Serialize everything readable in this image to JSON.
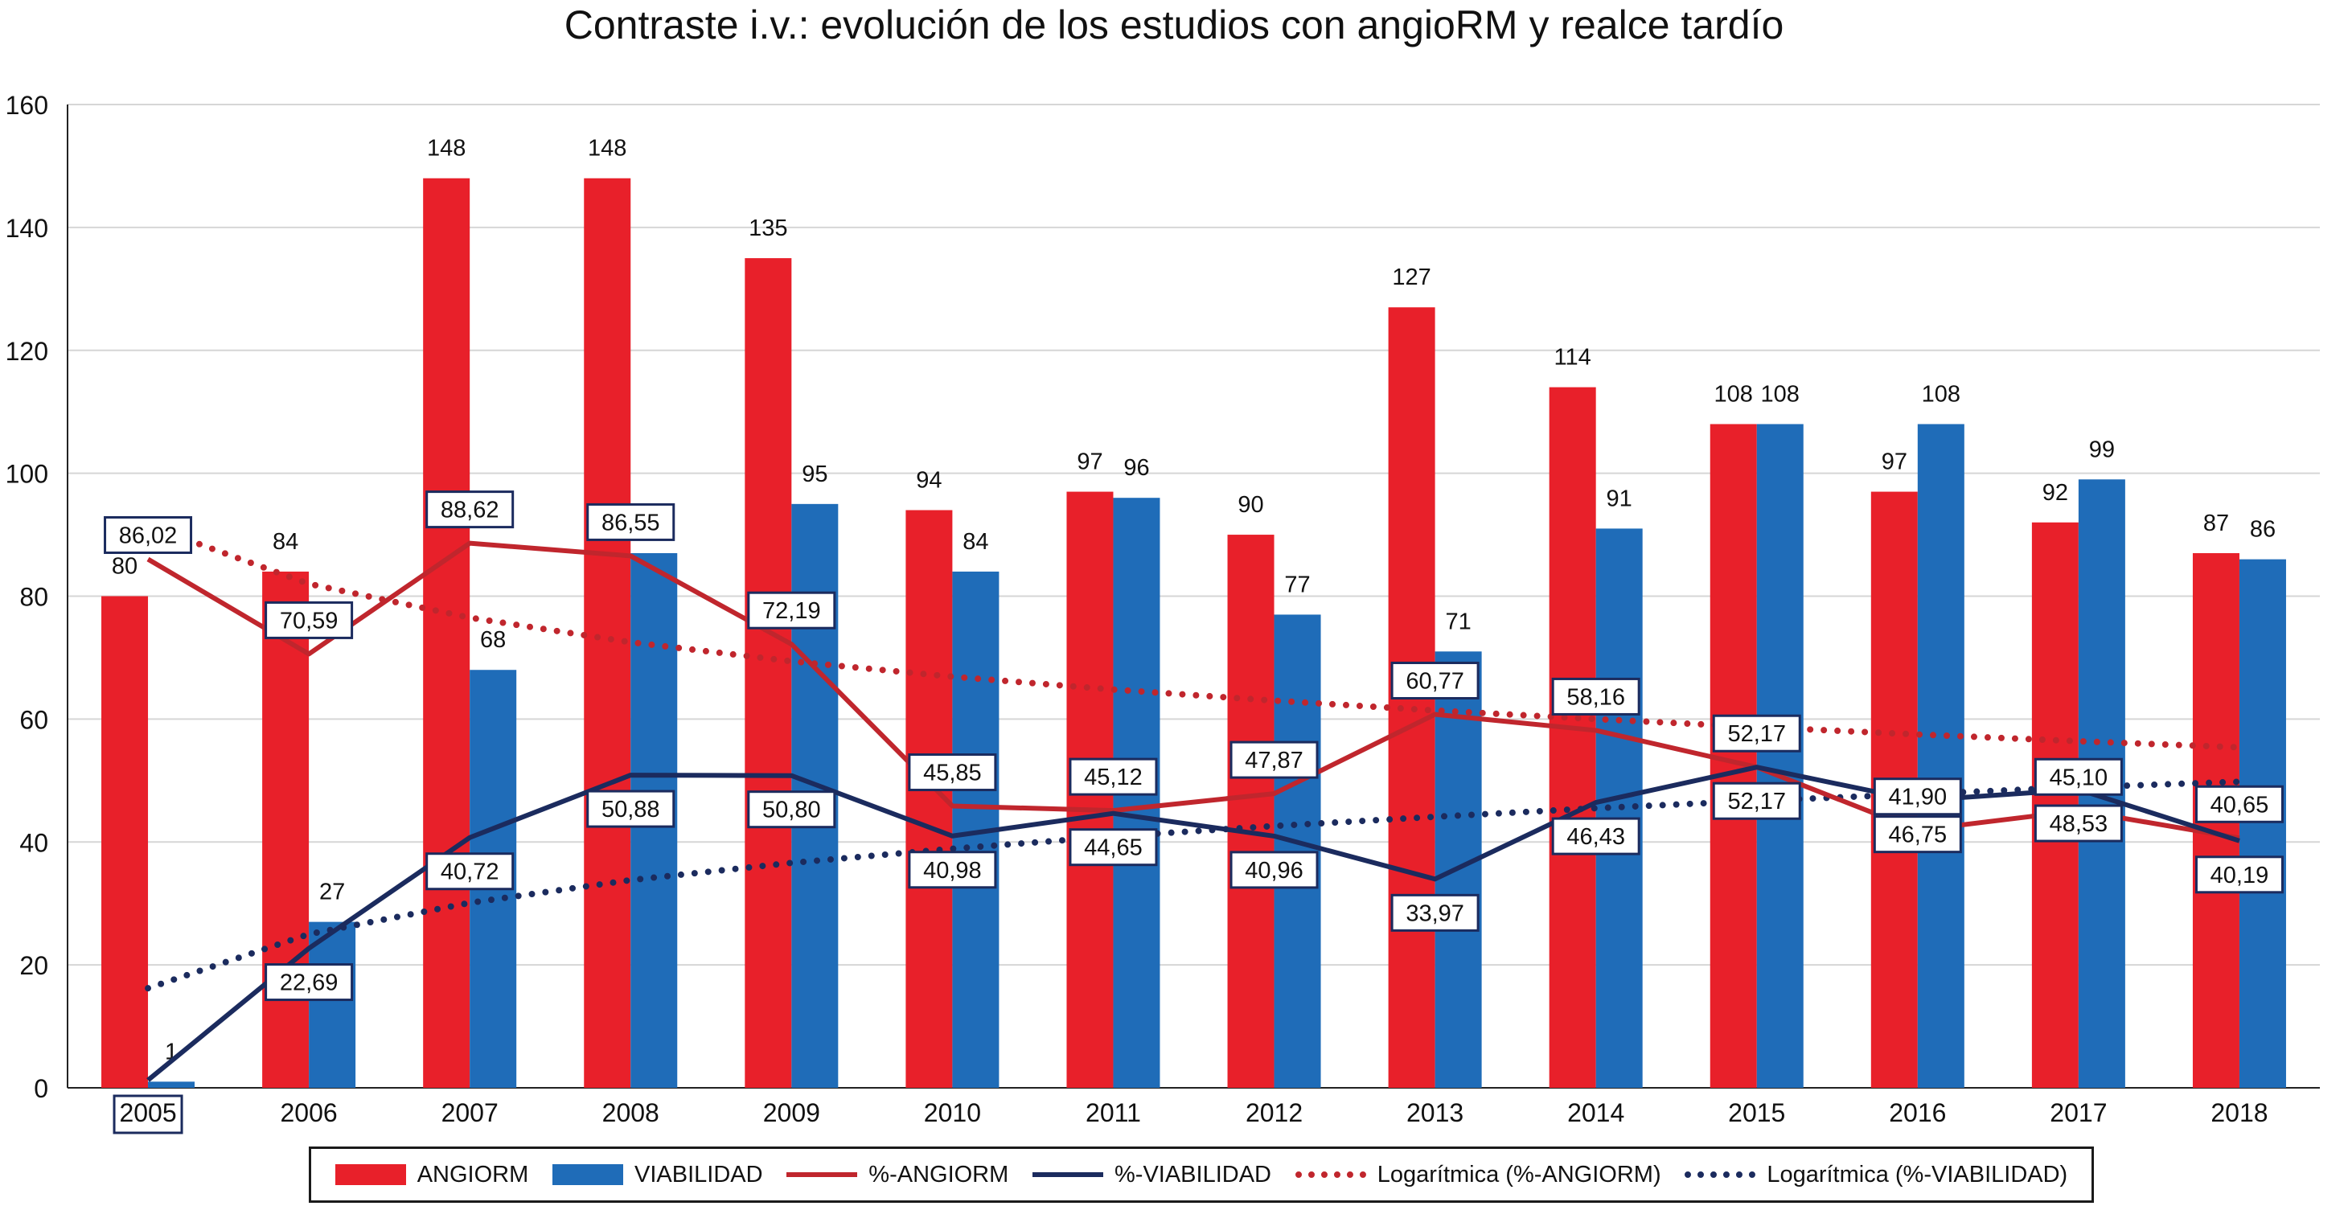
{
  "chart_data": {
    "type": "bar",
    "title": "Contraste i.v.: evolución de los estudios con angioRM y realce tardío",
    "categories": [
      "2005",
      "2006",
      "2007",
      "2008",
      "2009",
      "2010",
      "2011",
      "2012",
      "2013",
      "2014",
      "2015",
      "2016",
      "2017",
      "2018"
    ],
    "ylim": [
      0,
      160
    ],
    "yticks": [
      "0",
      "20",
      "40",
      "60",
      "80",
      "100",
      "120",
      "140",
      "160"
    ],
    "grid": true,
    "legend_position": "bottom",
    "series": [
      {
        "name": "ANGIORM",
        "kind": "bar",
        "color": "#e8202a",
        "values": [
          80,
          84,
          148,
          148,
          135,
          94,
          97,
          90,
          127,
          114,
          108,
          97,
          92,
          87
        ],
        "labels": [
          "80",
          "84",
          "148",
          "148",
          "135",
          "94",
          "97",
          "90",
          "127",
          "114",
          "108",
          "97",
          "92",
          "87"
        ]
      },
      {
        "name": "VIABILIDAD",
        "kind": "bar",
        "color": "#1f6cb8",
        "values": [
          1,
          27,
          68,
          87,
          95,
          84,
          96,
          77,
          71,
          91,
          108,
          108,
          99,
          86
        ],
        "labels": [
          "1",
          "27",
          "68",
          "",
          "95",
          "84",
          "96",
          "77",
          "71",
          "91",
          "108",
          "108",
          "99",
          "86"
        ]
      },
      {
        "name": "%-ANGIORM",
        "kind": "line",
        "color": "#c0262d",
        "values": [
          86.02,
          70.59,
          88.62,
          86.55,
          72.19,
          45.85,
          45.12,
          47.87,
          60.77,
          58.16,
          52.17,
          41.9,
          45.1,
          40.65
        ],
        "labels": [
          "86,02",
          "70,59",
          "88,62",
          "86,55",
          "72,19",
          "45,85",
          "45,12",
          "47,87",
          "60,77",
          "58,16",
          "52,17",
          "41,90",
          "45,10",
          "40,65"
        ]
      },
      {
        "name": "%-VIABILIDAD",
        "kind": "line",
        "color": "#1b2b5e",
        "values": [
          1.25,
          22.69,
          40.72,
          50.88,
          50.8,
          40.98,
          44.65,
          40.96,
          33.97,
          46.43,
          52.17,
          46.75,
          48.53,
          40.19
        ],
        "labels": [
          "",
          "22,69",
          "40,72",
          "50,88",
          "50,80",
          "40,98",
          "44,65",
          "40,96",
          "33,97",
          "46,43",
          "52,17",
          "46,75",
          "48,53",
          "40,19"
        ]
      },
      {
        "name": "Logarítmica (%-ANGIORM)",
        "kind": "trend",
        "color": "#c0262d",
        "values": [
          91.5,
          82.0,
          76.5,
          72.5,
          69.4,
          66.9,
          64.8,
          63.0,
          61.4,
          60.0,
          58.7,
          57.5,
          56.4,
          55.4
        ]
      },
      {
        "name": "Logarítmica (%-VIABILIDAD)",
        "kind": "trend",
        "color": "#1b2b5e",
        "values": [
          16.2,
          25.0,
          30.1,
          33.8,
          36.6,
          38.9,
          40.9,
          42.6,
          44.1,
          45.5,
          46.7,
          47.8,
          48.9,
          49.8
        ]
      }
    ],
    "xlabel": "",
    "ylabel": ""
  }
}
